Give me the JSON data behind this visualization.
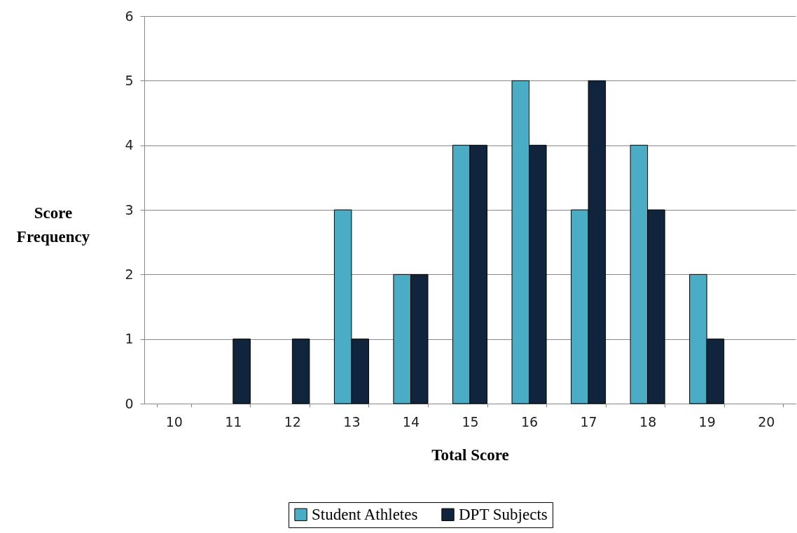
{
  "chart_data": {
    "type": "bar",
    "xlabel": "Total Score",
    "ylabel": "Score Frequency",
    "categories": [
      "10",
      "11",
      "12",
      "13",
      "14",
      "15",
      "16",
      "17",
      "18",
      "19",
      "20"
    ],
    "series": [
      {
        "name": "Student Athletes",
        "color": "#4bacc6",
        "values": [
          0,
          0,
          0,
          3,
          2,
          4,
          5,
          3,
          4,
          2,
          0
        ]
      },
      {
        "name": "DPT Subjects",
        "color": "#10243e",
        "values": [
          0,
          1,
          1,
          1,
          2,
          4,
          4,
          5,
          3,
          1,
          0
        ]
      }
    ],
    "ylim": [
      0,
      6
    ],
    "yticks": [
      0,
      1,
      2,
      3,
      4,
      5,
      6
    ],
    "grid": "y",
    "legend": "bottom"
  }
}
